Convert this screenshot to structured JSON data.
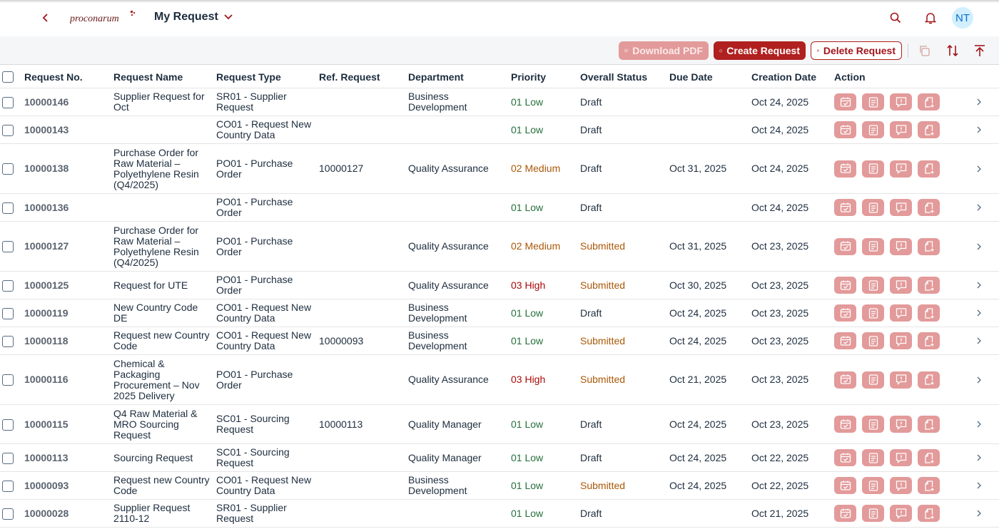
{
  "shell": {
    "logo_text": "proconarum",
    "title": "My Request",
    "avatar_initials": "NT"
  },
  "toolbar": {
    "download_pdf_label": "Download PDF",
    "create_request_label": "Create Request",
    "delete_request_label": "Delete Request"
  },
  "table": {
    "columns": [
      "Request No.",
      "Request Name",
      "Request Type",
      "Ref. Request",
      "Department",
      "Priority",
      "Overall Status",
      "Due Date",
      "Creation Date",
      "Action"
    ],
    "rows": [
      {
        "no": "10000146",
        "name": "Supplier Request for Oct",
        "type": "SR01 - Supplier Request",
        "ref": "",
        "dept": "Business Development",
        "priority": "01 Low",
        "status": "Draft",
        "due": "",
        "created": "Oct 24, 2025"
      },
      {
        "no": "10000143",
        "name": "",
        "type": "CO01 - Request New Country Data",
        "ref": "",
        "dept": "",
        "priority": "01 Low",
        "status": "Draft",
        "due": "",
        "created": "Oct 24, 2025"
      },
      {
        "no": "10000138",
        "name": "Purchase Order for Raw Material – Polyethylene Resin (Q4/2025)",
        "type": "PO01 - Purchase Order",
        "ref": "10000127",
        "dept": "Quality Assurance",
        "priority": "02 Medium",
        "status": "Draft",
        "due": "Oct 31, 2025",
        "created": "Oct 24, 2025"
      },
      {
        "no": "10000136",
        "name": "",
        "type": "PO01 - Purchase Order",
        "ref": "",
        "dept": "",
        "priority": "01 Low",
        "status": "Draft",
        "due": "",
        "created": "Oct 24, 2025"
      },
      {
        "no": "10000127",
        "name": "Purchase Order for Raw Material – Polyethylene Resin (Q4/2025)",
        "type": "PO01 - Purchase Order",
        "ref": "",
        "dept": "Quality Assurance",
        "priority": "02 Medium",
        "status": "Submitted",
        "due": "Oct 31, 2025",
        "created": "Oct 23, 2025"
      },
      {
        "no": "10000125",
        "name": "Request for UTE",
        "type": "PO01 - Purchase Order",
        "ref": "",
        "dept": "Quality Assurance",
        "priority": "03 High",
        "status": "Submitted",
        "due": "Oct 30, 2025",
        "created": "Oct 23, 2025"
      },
      {
        "no": "10000119",
        "name": "New Country Code DE",
        "type": "CO01 - Request New Country Data",
        "ref": "",
        "dept": "Business Development",
        "priority": "01 Low",
        "status": "Draft",
        "due": "Oct 24, 2025",
        "created": "Oct 23, 2025"
      },
      {
        "no": "10000118",
        "name": "Request new Country Code",
        "type": "CO01 - Request New Country Data",
        "ref": "10000093",
        "dept": "Business Development",
        "priority": "01 Low",
        "status": "Submitted",
        "due": "Oct 24, 2025",
        "created": "Oct 23, 2025"
      },
      {
        "no": "10000116",
        "name": "Chemical & Packaging Procurement – Nov 2025 Delivery",
        "type": "PO01 - Purchase Order",
        "ref": "",
        "dept": "Quality Assurance",
        "priority": "03 High",
        "status": "Submitted",
        "due": "Oct 21, 2025",
        "created": "Oct 23, 2025"
      },
      {
        "no": "10000115",
        "name": "Q4 Raw Material & MRO Sourcing Request",
        "type": "SC01 - Sourcing Request",
        "ref": "10000113",
        "dept": "Quality Manager",
        "priority": "01 Low",
        "status": "Draft",
        "due": "Oct 24, 2025",
        "created": "Oct 23, 2025"
      },
      {
        "no": "10000113",
        "name": "Sourcing Request",
        "type": "SC01 - Sourcing Request",
        "ref": "",
        "dept": "Quality Manager",
        "priority": "01 Low",
        "status": "Draft",
        "due": "Oct 24, 2025",
        "created": "Oct 22, 2025"
      },
      {
        "no": "10000093",
        "name": "Request new Country Code",
        "type": "CO01 - Request New Country Data",
        "ref": "",
        "dept": "Business Development",
        "priority": "01 Low",
        "status": "Submitted",
        "due": "Oct 24, 2025",
        "created": "Oct 22, 2025"
      },
      {
        "no": "10000028",
        "name": "Supplier Request 2110-12",
        "type": "SR01 - Supplier Request",
        "ref": "",
        "dept": "",
        "priority": "01 Low",
        "status": "Draft",
        "due": "",
        "created": "Oct 21, 2025"
      }
    ]
  },
  "colors": {
    "brand_red": "#b0201f",
    "action_pink": "#e39a9a",
    "priority_low": "#256f3a",
    "priority_medium": "#aa5808",
    "priority_high": "#aa0808",
    "status_submitted": "#aa5808"
  },
  "icons": {
    "action_buttons": [
      "calendar-check-icon",
      "form-icon",
      "comment-icon",
      "add-document-icon"
    ]
  }
}
